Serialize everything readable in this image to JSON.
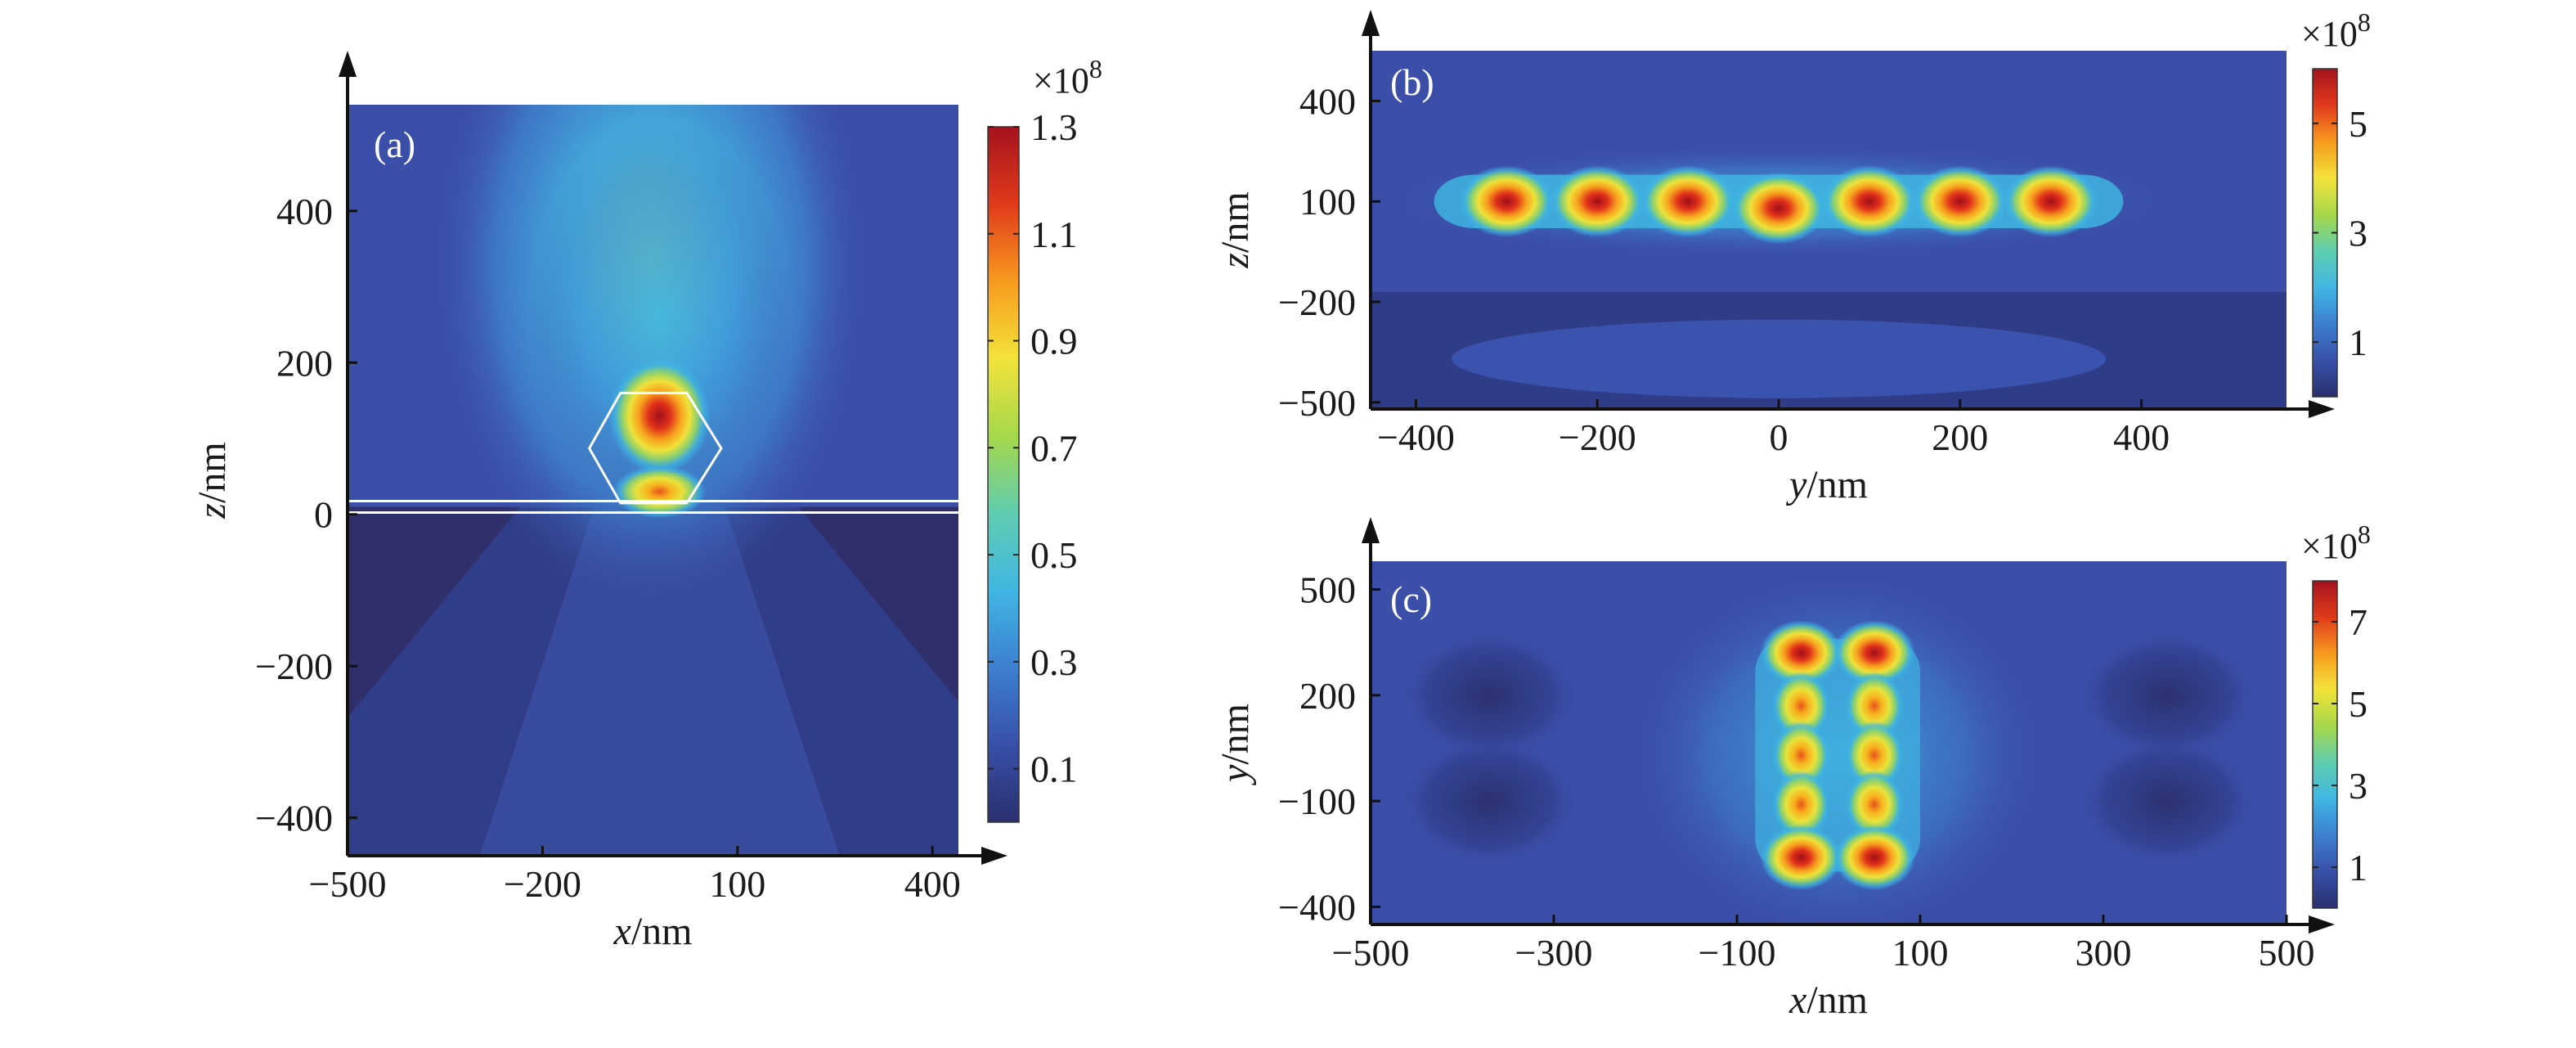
{
  "colors": {
    "background": "#3b4ea8",
    "dark_substrate": "#2e2f6b",
    "outline": "#ffffff",
    "axis": "#111111"
  },
  "colormap": [
    "#2a2f6e",
    "#3850a8",
    "#3d7fd0",
    "#40b6e2",
    "#5fcdb0",
    "#a6d84a",
    "#f3e33a",
    "#f79a1e",
    "#e03a1c",
    "#a5121c"
  ],
  "chart_data": [
    {
      "type": "heatmap",
      "panel_label": "(a)",
      "xlabel_var": "x",
      "xlabel_unit": "/nm",
      "ylabel_var": "z",
      "ylabel_unit": "/nm",
      "xlim": [
        -500,
        440
      ],
      "ylim": [
        -450,
        540
      ],
      "x_ticks": [
        -500,
        -200,
        100,
        400
      ],
      "x_tick_labels": [
        "−500",
        "−200",
        "100",
        "400"
      ],
      "y_ticks": [
        -400,
        -200,
        0,
        200,
        400
      ],
      "y_tick_labels": [
        "−400",
        "−200",
        "0",
        "200",
        "400"
      ],
      "colorbar": {
        "multiplier": "×10",
        "exponent": "8",
        "min": 0,
        "max": 1.3,
        "ticks": [
          0.1,
          0.3,
          0.5,
          0.7,
          0.9,
          1.1,
          1.3
        ],
        "tick_labels": [
          "0.1",
          "0.3",
          "0.5",
          "0.7",
          "0.9",
          "1.1",
          "1.3"
        ]
      },
      "interface_z": 10,
      "particle_outline": {
        "shape": "hexagon",
        "vertices_data": [
          [
            -80,
            160
          ],
          [
            22,
            160
          ],
          [
            75,
            87
          ],
          [
            22,
            15
          ],
          [
            -80,
            15
          ],
          [
            -128,
            87
          ]
        ]
      },
      "hotspots": [
        {
          "x": -20,
          "z": 130,
          "value": 1.3,
          "sx": 60,
          "sz": 55
        },
        {
          "x": -20,
          "z": 30,
          "value": 1.1,
          "sx": 55,
          "sz": 25
        }
      ]
    },
    {
      "type": "heatmap",
      "panel_label": "(b)",
      "xlabel_var": "y",
      "xlabel_unit": "/nm",
      "ylabel_var": "z",
      "ylabel_unit": "/nm",
      "xlim": [
        -450,
        560
      ],
      "ylim": [
        -520,
        550
      ],
      "x_ticks": [
        -400,
        -200,
        0,
        200,
        400
      ],
      "x_tick_labels": [
        "−400",
        "−200",
        "0",
        "200",
        "400"
      ],
      "y_ticks": [
        -500,
        -200,
        100,
        400
      ],
      "y_tick_labels": [
        "−500",
        "−200",
        "100",
        "400"
      ],
      "colorbar": {
        "multiplier": "×10",
        "exponent": "8",
        "min": 0,
        "max": 6,
        "ticks": [
          1,
          3,
          5
        ],
        "tick_labels": [
          "1",
          "3",
          "5"
        ]
      },
      "hotspots": [
        {
          "x": -300,
          "z": 100,
          "value": 5.5
        },
        {
          "x": -200,
          "z": 100,
          "value": 5.5
        },
        {
          "x": -100,
          "z": 100,
          "value": 5.2
        },
        {
          "x": 0,
          "z": 80,
          "value": 5.5
        },
        {
          "x": 100,
          "z": 100,
          "value": 5.3
        },
        {
          "x": 200,
          "z": 100,
          "value": 5.6
        },
        {
          "x": 300,
          "z": 100,
          "value": 5.3
        }
      ]
    },
    {
      "type": "heatmap",
      "panel_label": "(c)",
      "xlabel_var": "x",
      "xlabel_unit": "/nm",
      "ylabel_var": "y",
      "ylabel_unit": "/nm",
      "xlim": [
        -500,
        500
      ],
      "ylim": [
        -450,
        580
      ],
      "x_ticks": [
        -500,
        -300,
        -100,
        100,
        300,
        500
      ],
      "x_tick_labels": [
        "−500",
        "−300",
        "−100",
        "100",
        "300",
        "500"
      ],
      "y_ticks": [
        -400,
        -100,
        200,
        500
      ],
      "y_tick_labels": [
        "−400",
        "−100",
        "200",
        "500"
      ],
      "colorbar": {
        "multiplier": "×10",
        "exponent": "8",
        "min": 0,
        "max": 8,
        "ticks": [
          1,
          3,
          5,
          7
        ],
        "tick_labels": [
          "1",
          "3",
          "5",
          "7"
        ]
      },
      "hotspots": [
        {
          "x": -30,
          "y": 320,
          "value": 8
        },
        {
          "x": 50,
          "y": 320,
          "value": 8
        },
        {
          "x": -30,
          "y": 170,
          "value": 5.5
        },
        {
          "x": 50,
          "y": 170,
          "value": 5.5
        },
        {
          "x": -30,
          "y": 30,
          "value": 4.5
        },
        {
          "x": 50,
          "y": 30,
          "value": 4.5
        },
        {
          "x": -30,
          "y": -110,
          "value": 5.5
        },
        {
          "x": 50,
          "y": -110,
          "value": 5.5
        },
        {
          "x": -30,
          "y": -260,
          "value": 8
        },
        {
          "x": 50,
          "y": -260,
          "value": 8
        }
      ]
    }
  ]
}
